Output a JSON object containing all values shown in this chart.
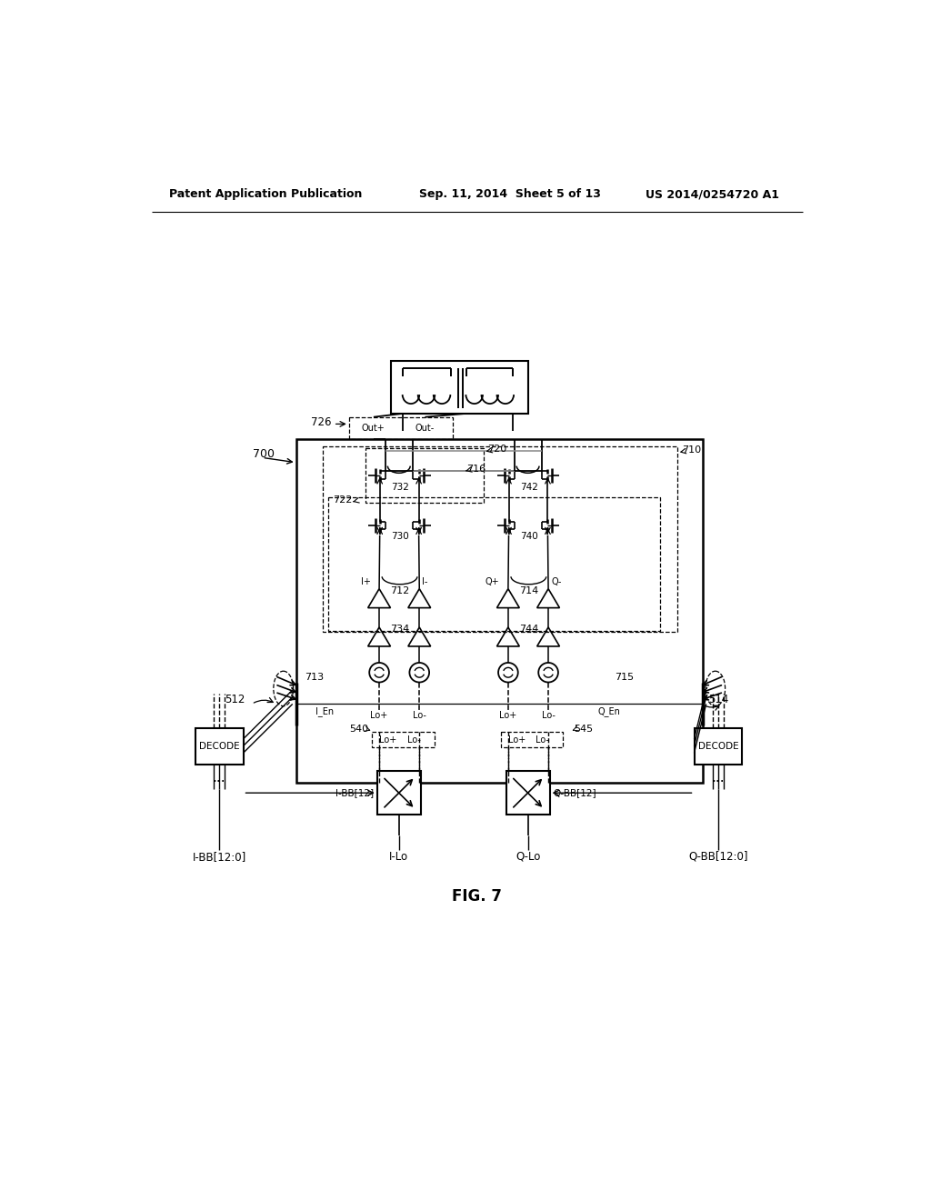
{
  "bg_color": "#ffffff",
  "header_left": "Patent Application Publication",
  "header_mid": "Sep. 11, 2014  Sheet 5 of 13",
  "header_right": "US 2014/0254720 A1",
  "fig_label": "FIG. 7"
}
